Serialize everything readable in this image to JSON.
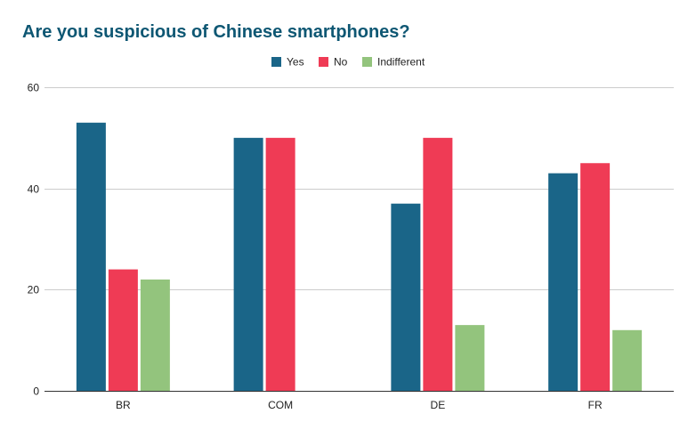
{
  "chart_data": {
    "type": "bar",
    "title": "Are you suspicious of Chinese smartphones?",
    "categories": [
      "BR",
      "COM",
      "DE",
      "FR"
    ],
    "series": [
      {
        "name": "Yes",
        "color": "#1a6588",
        "values": [
          53,
          50,
          37,
          43
        ]
      },
      {
        "name": "No",
        "color": "#ef3b55",
        "values": [
          24,
          50,
          50,
          45
        ]
      },
      {
        "name": "Indifferent",
        "color": "#93c47d",
        "values": [
          22,
          0,
          13,
          12
        ]
      }
    ],
    "ylim": [
      0,
      60
    ],
    "yticks": [
      0,
      20,
      40,
      60
    ],
    "grid": true,
    "legend_position": "top-center",
    "title_color": "#0e5773",
    "xlabel": "",
    "ylabel": ""
  }
}
